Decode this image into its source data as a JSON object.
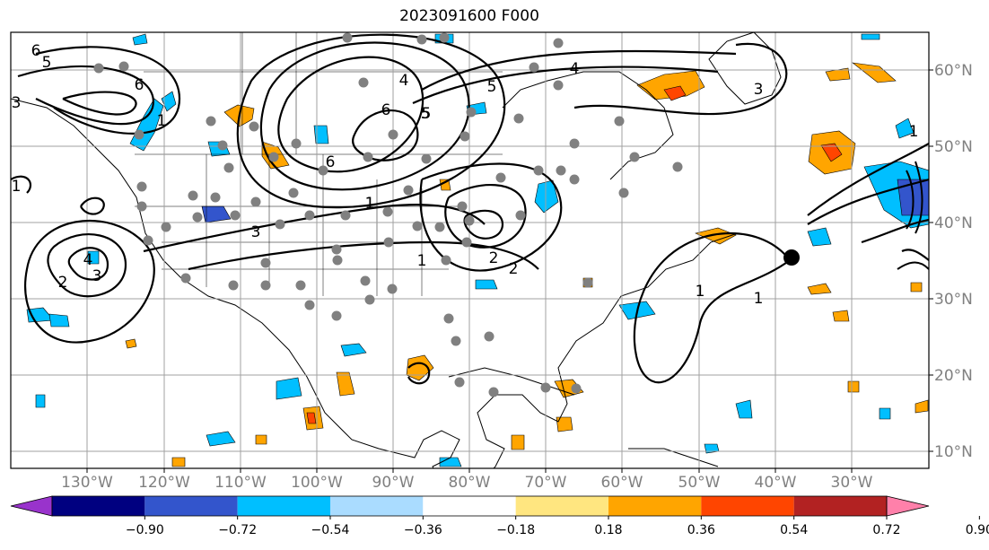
{
  "title": "2023091600 F000",
  "lon_labels": [
    "130°W",
    "120°W",
    "110°W",
    "100°W",
    "90°W",
    "80°W",
    "70°W",
    "60°W",
    "50°W",
    "40°W",
    "30°W"
  ],
  "lat_labels": [
    "60°N",
    "50°N",
    "40°N",
    "30°N",
    "20°N",
    "10°N"
  ],
  "colorbar": {
    "colors": [
      "#9933cc",
      "#000080",
      "#3355cc",
      "#00bfff",
      "#aadcff",
      "#ffffff",
      "#ffe680",
      "#ffa500",
      "#ff4500",
      "#b22222",
      "#ff80aa"
    ],
    "tick_labels": [
      "−0.90",
      "−0.72",
      "−0.54",
      "−0.36",
      "−0.18",
      "0.18",
      "0.36",
      "0.54",
      "0.72",
      "0.90"
    ]
  },
  "contour_labels": [
    "6",
    "5",
    "4",
    "6",
    "5",
    "6",
    "5",
    "4",
    "3",
    "1",
    "1",
    "1",
    "1",
    "3",
    "2",
    "1",
    "4",
    "3",
    "2",
    "2",
    "1",
    "1",
    "5",
    "6",
    "3",
    "1"
  ],
  "markers": {
    "highlight": "black-dot",
    "stations": "gray-dots"
  }
}
